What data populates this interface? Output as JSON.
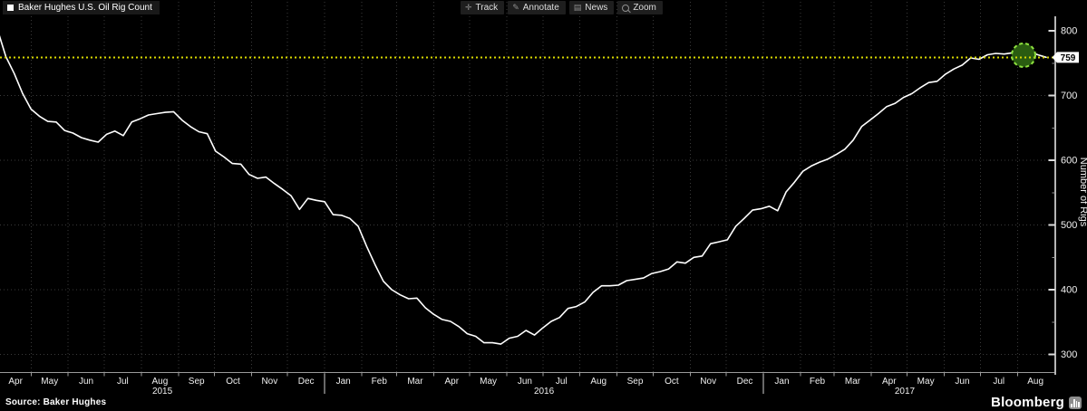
{
  "window": {
    "title": "Baker Hughes U.S. Oil Rig Count"
  },
  "legend": {
    "label": "Baker Hughes U.S. Oil Rig Count"
  },
  "toolbar": {
    "track": "Track",
    "annotate": "Annotate",
    "news": "News",
    "zoom": "Zoom"
  },
  "y_axis": {
    "title": "Number of Rigs",
    "ticks": [
      800,
      700,
      600,
      500,
      400,
      300
    ],
    "minor_ticks": [
      750,
      650,
      550,
      450,
      350
    ],
    "last_value_label": "759"
  },
  "x_axis": {
    "month_labels": [
      "Apr",
      "May",
      "Jun",
      "Jul",
      "Aug",
      "Sep",
      "Oct",
      "Nov",
      "Dec",
      "Jan",
      "Feb",
      "Mar",
      "Apr",
      "May",
      "Jun",
      "Jul",
      "Aug",
      "Sep",
      "Oct",
      "Nov",
      "Dec",
      "Jan",
      "Feb",
      "Mar",
      "Apr",
      "May",
      "Jun",
      "Jul",
      "Aug"
    ],
    "year_labels": [
      "2015",
      "2016",
      "2017"
    ]
  },
  "footer": {
    "source": "Source: Baker Hughes",
    "brand": "Bloomberg"
  },
  "colors": {
    "background": "#000000",
    "line": "#ffffff",
    "grid": "#3a3a3a",
    "last_value_line": "#d9d900",
    "axis": "#b5b5b5",
    "tick_label": "#f0f0f0",
    "circle_fill": "#2a5c11",
    "circle_ring": "#8de03e",
    "tag_bg": "#ffffff",
    "tag_text": "#000000"
  },
  "chart_data": {
    "type": "line",
    "title": "Baker Hughes U.S. Oil Rig Count",
    "frequency": "weekly",
    "x_start": "2015-03-20",
    "x_end": "2017-08-25",
    "xlabel": "",
    "ylabel": "Number of Rigs",
    "ylim": [
      260,
      820
    ],
    "grid": true,
    "last_value": 759,
    "series": [
      {
        "name": "Baker Hughes U.S. Oil Rig Count",
        "values": [
          825,
          813,
          802,
          760,
          734,
          703,
          679,
          668,
          660,
          659,
          646,
          642,
          635,
          631,
          628,
          640,
          645,
          638,
          659,
          664,
          670,
          672,
          674,
          675,
          662,
          652,
          644,
          641,
          614,
          605,
          595,
          594,
          578,
          572,
          574,
          564,
          555,
          545,
          524,
          541,
          538,
          536,
          516,
          515,
          510,
          498,
          467,
          439,
          413,
          400,
          392,
          386,
          387,
          372,
          362,
          354,
          351,
          343,
          332,
          328,
          318,
          318,
          316,
          325,
          328,
          337,
          330,
          341,
          351,
          357,
          371,
          374,
          381,
          396,
          406,
          406,
          407,
          414,
          416,
          418,
          425,
          428,
          432,
          443,
          441,
          450,
          452,
          471,
          474,
          477,
          498,
          510,
          523,
          525,
          529,
          522,
          551,
          566,
          583,
          591,
          597,
          602,
          609,
          617,
          631,
          652,
          662,
          672,
          683,
          688,
          697,
          703,
          712,
          720,
          722,
          733,
          741,
          747,
          758,
          756,
          763,
          765,
          764,
          766,
          765,
          768,
          763,
          759
        ]
      }
    ]
  }
}
